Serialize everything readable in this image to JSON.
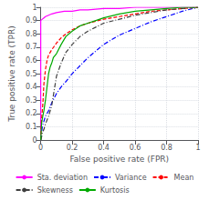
{
  "chart_data": {
    "type": "line",
    "xlabel": "False positive rate (FPR)",
    "ylabel": "True positive rate (TPR)",
    "xlim": [
      0,
      1
    ],
    "ylim": [
      0,
      1
    ],
    "xticks": [
      0,
      0.2,
      0.4,
      0.6,
      0.8,
      1
    ],
    "yticks": [
      0,
      0.1,
      0.2,
      0.3,
      0.4,
      0.5,
      0.6,
      0.7,
      0.8,
      0.9,
      1
    ],
    "grid": true,
    "legend": "bottom",
    "series": [
      {
        "name": "Sta. deviation",
        "color": "#ff00ff",
        "line_style": "solid",
        "x": [
          0,
          0.0,
          0.01,
          0.02,
          0.03,
          0.05,
          0.07,
          0.1,
          0.15,
          0.2,
          0.25,
          0.3,
          0.4,
          0.5,
          0.6,
          0.7,
          0.8,
          0.9,
          1.0
        ],
        "values": [
          0.0,
          0.9,
          0.91,
          0.92,
          0.93,
          0.94,
          0.95,
          0.96,
          0.97,
          0.97,
          0.98,
          0.98,
          0.99,
          0.99,
          1.0,
          1.0,
          1.0,
          1.0,
          1.0
        ]
      },
      {
        "name": "Variance",
        "color": "#0000ff",
        "line_style": "dashdot",
        "x": [
          0,
          0.01,
          0.02,
          0.03,
          0.05,
          0.07,
          0.1,
          0.13,
          0.16,
          0.2,
          0.25,
          0.3,
          0.35,
          0.4,
          0.5,
          0.6,
          0.7,
          0.8,
          0.9,
          1.0
        ],
        "values": [
          0,
          0.1,
          0.14,
          0.18,
          0.22,
          0.28,
          0.35,
          0.4,
          0.44,
          0.5,
          0.56,
          0.62,
          0.67,
          0.72,
          0.79,
          0.84,
          0.89,
          0.93,
          0.97,
          1.0
        ]
      },
      {
        "name": "Mean",
        "color": "#ff0000",
        "line_style": "dashed",
        "x": [
          0,
          0.005,
          0.01,
          0.015,
          0.02,
          0.03,
          0.04,
          0.05,
          0.07,
          0.1,
          0.13,
          0.16,
          0.2,
          0.25,
          0.3,
          0.4,
          0.5,
          0.6,
          0.7,
          0.8,
          0.9,
          1.0
        ],
        "values": [
          0,
          0.15,
          0.22,
          0.3,
          0.42,
          0.53,
          0.6,
          0.64,
          0.68,
          0.73,
          0.77,
          0.8,
          0.83,
          0.86,
          0.88,
          0.91,
          0.93,
          0.95,
          0.97,
          0.98,
          0.99,
          1.0
        ]
      },
      {
        "name": "Skewness",
        "color": "#404040",
        "line_style": "dashdot",
        "x": [
          0,
          0.005,
          0.01,
          0.02,
          0.03,
          0.05,
          0.07,
          0.1,
          0.13,
          0.16,
          0.2,
          0.25,
          0.3,
          0.35,
          0.4,
          0.5,
          0.6,
          0.7,
          0.8,
          0.9,
          1.0
        ],
        "values": [
          0,
          0.02,
          0.05,
          0.08,
          0.12,
          0.18,
          0.26,
          0.48,
          0.58,
          0.66,
          0.72,
          0.78,
          0.82,
          0.85,
          0.88,
          0.91,
          0.94,
          0.96,
          0.98,
          0.99,
          1.0
        ]
      },
      {
        "name": "Kurtosis",
        "color": "#00aa00",
        "line_style": "solid",
        "x": [
          0,
          0.005,
          0.01,
          0.02,
          0.03,
          0.04,
          0.05,
          0.06,
          0.07,
          0.08,
          0.1,
          0.13,
          0.16,
          0.2,
          0.25,
          0.3,
          0.35,
          0.4,
          0.5,
          0.6,
          0.7,
          0.8,
          0.9,
          1.0
        ],
        "values": [
          0,
          0.12,
          0.16,
          0.22,
          0.3,
          0.4,
          0.5,
          0.55,
          0.58,
          0.62,
          0.65,
          0.72,
          0.78,
          0.82,
          0.86,
          0.88,
          0.9,
          0.92,
          0.95,
          0.97,
          0.98,
          0.99,
          1.0,
          1.0
        ]
      }
    ]
  }
}
